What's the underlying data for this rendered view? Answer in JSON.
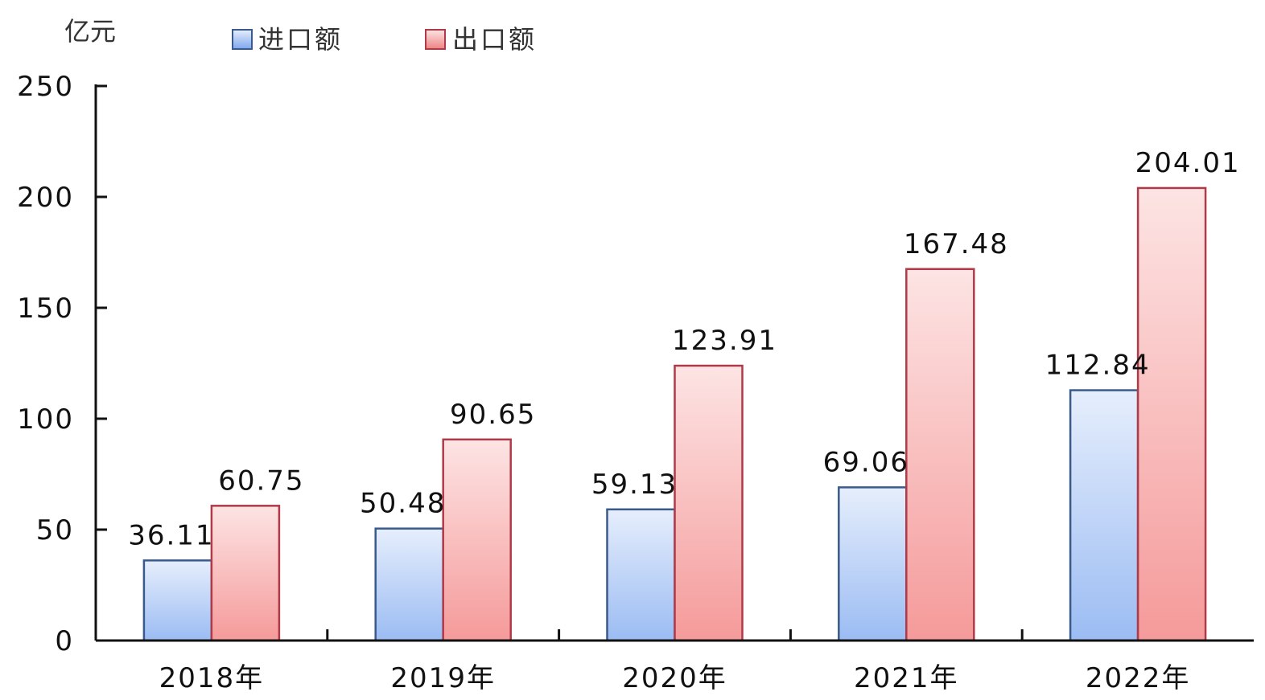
{
  "chart_data": {
    "type": "bar",
    "unit_label": "亿元",
    "categories": [
      "2018年",
      "2019年",
      "2020年",
      "2021年",
      "2022年"
    ],
    "series": [
      {
        "name": "进口额",
        "values": [
          36.11,
          50.48,
          59.13,
          69.06,
          112.84
        ],
        "color": "#a8c4f5",
        "stroke": "#3a5a8c"
      },
      {
        "name": "出口额",
        "values": [
          60.75,
          90.65,
          123.91,
          167.48,
          204.01
        ],
        "color": "#f7a6a6",
        "stroke": "#b03a48"
      }
    ],
    "value_labels": [
      [
        "36.11",
        "50.48",
        "59.13",
        "69.06",
        "112.84"
      ],
      [
        "60.75",
        "90.65",
        "123.91",
        "167.48",
        "204.01"
      ]
    ],
    "ylim": [
      0,
      250
    ],
    "yticks": [
      0,
      50,
      100,
      150,
      200,
      250
    ],
    "ytick_labels": [
      "0",
      "50",
      "100",
      "150",
      "200",
      "250"
    ],
    "grid": false,
    "legend_position": "top"
  }
}
